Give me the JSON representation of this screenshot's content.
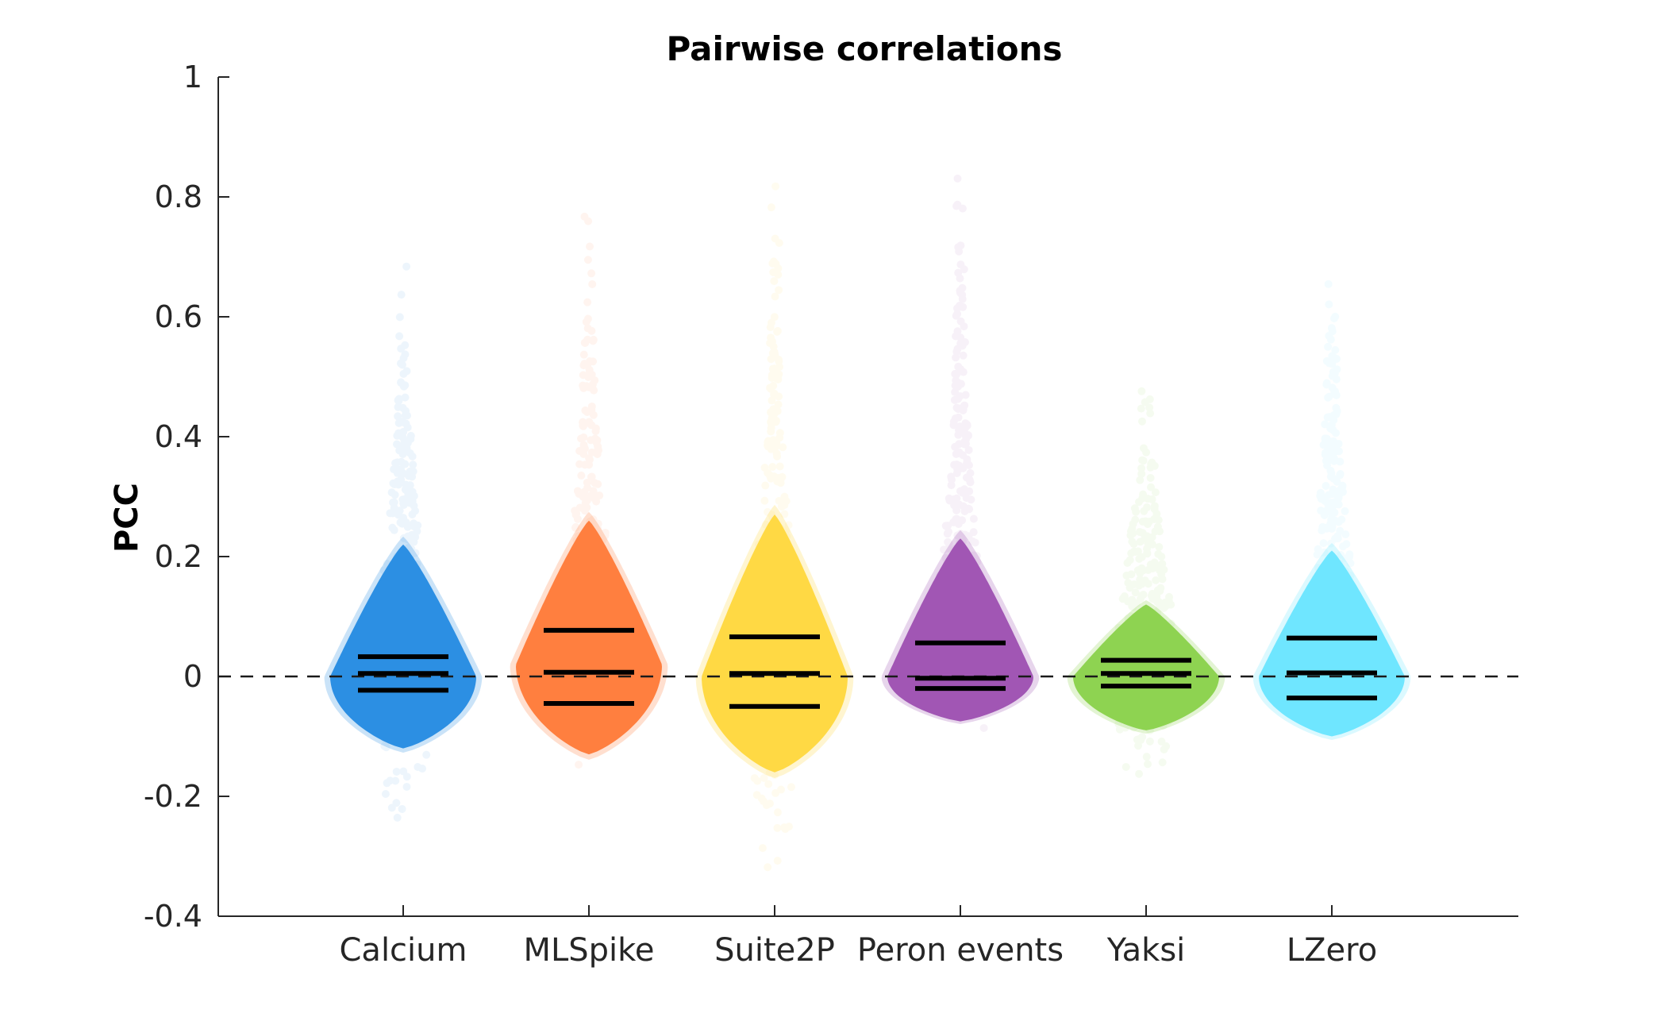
{
  "chart_data": {
    "type": "violin",
    "title": "Pairwise correlations",
    "xlabel": "",
    "ylabel": "PCC",
    "ylim": [
      -0.4,
      1
    ],
    "yticks": [
      {
        "value": -0.4,
        "label": "-0.4"
      },
      {
        "value": -0.2,
        "label": "-0.2"
      },
      {
        "value": 0,
        "label": "0"
      },
      {
        "value": 0.2,
        "label": "0.2"
      },
      {
        "value": 0.4,
        "label": "0.4"
      },
      {
        "value": 0.6,
        "label": "0.6"
      },
      {
        "value": 0.8,
        "label": "0.8"
      },
      {
        "value": 1,
        "label": "1"
      }
    ],
    "reference_line": {
      "y": 0,
      "style": "dashed"
    },
    "grid": false,
    "legend": "none",
    "categories": [
      "Calcium",
      "MLSpike",
      "Suite2P",
      "Peron events",
      "Yaksi",
      "LZero"
    ],
    "series": [
      {
        "category": "Calcium",
        "color": "#2c8fe3",
        "q25": -0.023,
        "median": 0.005,
        "q75": 0.033,
        "dense_min": -0.12,
        "dense_max": 0.22,
        "widest_at": 0.0,
        "tail_min": -0.27,
        "tail_max": 0.73
      },
      {
        "category": "MLSpike",
        "color": "#ff7f3f",
        "q25": -0.045,
        "median": 0.007,
        "q75": 0.077,
        "dense_min": -0.13,
        "dense_max": 0.26,
        "widest_at": 0.02,
        "tail_min": -0.17,
        "tail_max": 0.78
      },
      {
        "category": "Suite2P",
        "color": "#ffd944",
        "q25": -0.05,
        "median": 0.005,
        "q75": 0.066,
        "dense_min": -0.16,
        "dense_max": 0.27,
        "widest_at": 0.0,
        "tail_min": -0.34,
        "tail_max": 0.88
      },
      {
        "category": "Peron events",
        "color": "#a156b4",
        "q25": -0.02,
        "median": -0.003,
        "q75": 0.056,
        "dense_min": -0.075,
        "dense_max": 0.23,
        "widest_at": 0.0,
        "tail_min": -0.1,
        "tail_max": 0.9
      },
      {
        "category": "Yaksi",
        "color": "#8ed351",
        "q25": -0.016,
        "median": 0.005,
        "q75": 0.027,
        "dense_min": -0.09,
        "dense_max": 0.12,
        "widest_at": 0.0,
        "tail_min": -0.2,
        "tail_max": 0.5
      },
      {
        "category": "LZero",
        "color": "#6fe6ff",
        "q25": -0.036,
        "median": 0.006,
        "q75": 0.064,
        "dense_min": -0.1,
        "dense_max": 0.21,
        "widest_at": 0.0,
        "tail_min": -0.11,
        "tail_max": 0.7
      }
    ]
  }
}
